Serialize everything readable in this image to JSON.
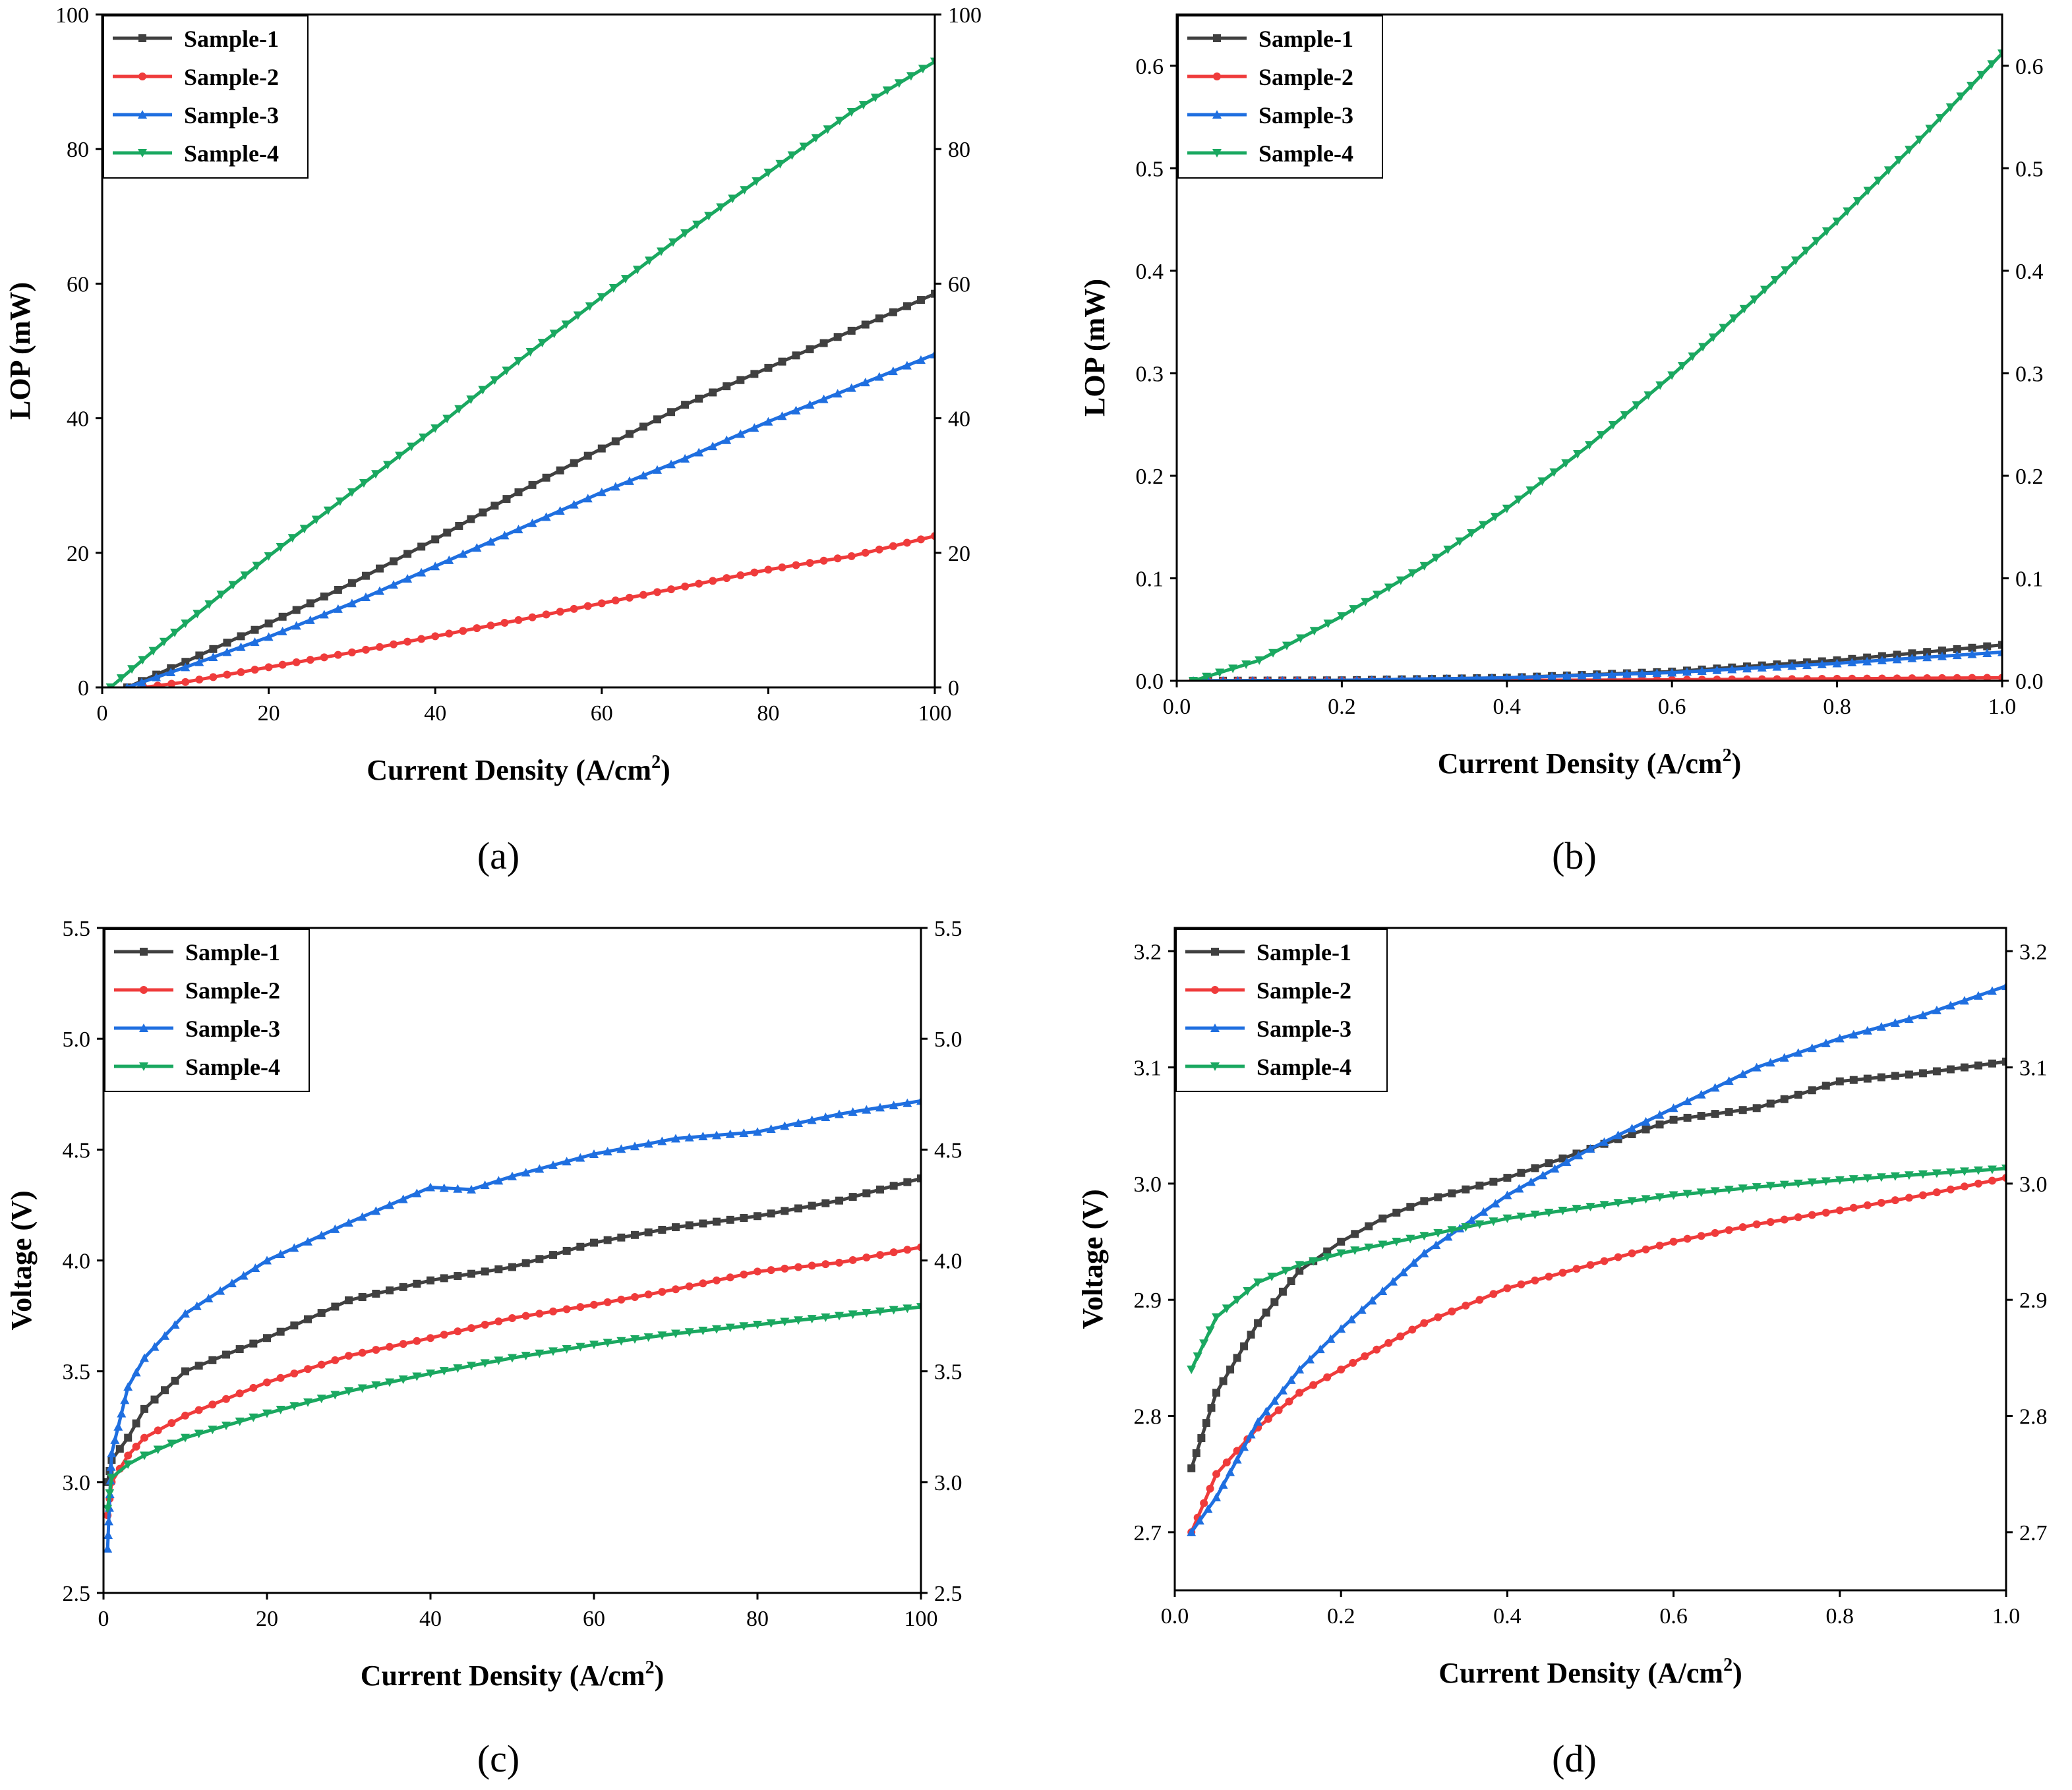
{
  "colors": {
    "Sample-1": "#404040",
    "Sample-2": "#ef3b3b",
    "Sample-3": "#1f6fe0",
    "Sample-4": "#1aa860"
  },
  "chart_data": [
    {
      "panel": "(a)",
      "type": "line",
      "xlabel": "Current Density (A/cm",
      "xlabel_sup": "2",
      "xlabel_end": ")",
      "ylabel": "LOP (mW)",
      "xlim": [
        0,
        100
      ],
      "ylim": [
        0,
        100
      ],
      "xticks": [
        "0",
        "20",
        "40",
        "60",
        "80",
        "100"
      ],
      "yticks": [
        "0",
        "20",
        "40",
        "60",
        "80",
        "100"
      ],
      "right_axis": true,
      "legend": "top-left",
      "series": [
        {
          "name": "Sample-1",
          "marker": "square",
          "x": [
            3,
            10,
            20,
            30,
            40,
            50,
            60,
            70,
            80,
            90,
            100
          ],
          "y": [
            0,
            3.8,
            9.5,
            15.5,
            22,
            29,
            35.5,
            42,
            47.5,
            53,
            58.5
          ]
        },
        {
          "name": "Sample-2",
          "marker": "circle",
          "x": [
            5,
            10,
            20,
            30,
            40,
            50,
            60,
            70,
            80,
            90,
            100
          ],
          "y": [
            0,
            0.8,
            3,
            5.2,
            7.6,
            10,
            12.5,
            15,
            17.5,
            19.5,
            22.5
          ]
        },
        {
          "name": "Sample-3",
          "marker": "triangle-up",
          "x": [
            3,
            10,
            20,
            30,
            40,
            50,
            60,
            70,
            80,
            90,
            100
          ],
          "y": [
            0,
            3,
            7.5,
            12.5,
            18,
            23.5,
            29,
            34,
            39.5,
            44.5,
            49.5
          ]
        },
        {
          "name": "Sample-4",
          "marker": "triangle-down",
          "x": [
            1,
            10,
            20,
            30,
            40,
            50,
            60,
            70,
            80,
            90,
            100
          ],
          "y": [
            0,
            9.5,
            19.5,
            29,
            38.5,
            48.5,
            58,
            67.5,
            76.5,
            85.5,
            93
          ]
        }
      ]
    },
    {
      "panel": "(b)",
      "type": "line",
      "xlabel": "Current Density (A/cm",
      "xlabel_sup": "2",
      "xlabel_end": ")",
      "ylabel": "LOP (mW)",
      "xlim": [
        0,
        1
      ],
      "ylim": [
        0,
        0.65
      ],
      "xticks": [
        "0.0",
        "0.2",
        "0.4",
        "0.6",
        "0.8",
        "1.0"
      ],
      "yticks": [
        "0.0",
        "0.1",
        "0.2",
        "0.3",
        "0.4",
        "0.5",
        "0.6"
      ],
      "right_axis": true,
      "legend": "top-left",
      "series": [
        {
          "name": "Sample-1",
          "marker": "square",
          "x": [
            0.02,
            0.2,
            0.4,
            0.6,
            0.8,
            1.0
          ],
          "y": [
            0,
            0.0005,
            0.003,
            0.009,
            0.02,
            0.035
          ]
        },
        {
          "name": "Sample-2",
          "marker": "circle",
          "x": [
            0.02,
            0.2,
            0.4,
            0.6,
            0.8,
            1.0
          ],
          "y": [
            0,
            0,
            0.0005,
            0.001,
            0.002,
            0.003
          ]
        },
        {
          "name": "Sample-3",
          "marker": "triangle-up",
          "x": [
            0.02,
            0.2,
            0.4,
            0.6,
            0.8,
            1.0
          ],
          "y": [
            0,
            0.0005,
            0.003,
            0.008,
            0.017,
            0.028
          ]
        },
        {
          "name": "Sample-4",
          "marker": "triangle-down",
          "x": [
            0.02,
            0.1,
            0.2,
            0.3,
            0.4,
            0.5,
            0.6,
            0.7,
            0.8,
            0.9,
            1.0
          ],
          "y": [
            0,
            0.02,
            0.063,
            0.112,
            0.168,
            0.23,
            0.298,
            0.372,
            0.448,
            0.528,
            0.612
          ]
        }
      ]
    },
    {
      "panel": "(c)",
      "type": "line",
      "xlabel": "Current Density (A/cm",
      "xlabel_sup": "2",
      "xlabel_end": ")",
      "ylabel": "Voltage (V)",
      "xlim": [
        0,
        100
      ],
      "ylim": [
        2.5,
        5.5
      ],
      "xticks": [
        "0",
        "20",
        "40",
        "60",
        "80",
        "100"
      ],
      "yticks": [
        "2.5",
        "3.0",
        "3.5",
        "4.0",
        "4.5",
        "5.0",
        "5.5"
      ],
      "right_axis": true,
      "legend": "top-left",
      "series": [
        {
          "name": "Sample-1",
          "marker": "square",
          "x": [
            0.5,
            1,
            3,
            5,
            10,
            20,
            30,
            40,
            50,
            60,
            70,
            80,
            90,
            100
          ],
          "y": [
            3.0,
            3.1,
            3.2,
            3.33,
            3.5,
            3.65,
            3.82,
            3.91,
            3.97,
            4.08,
            4.15,
            4.2,
            4.27,
            4.37
          ]
        },
        {
          "name": "Sample-2",
          "marker": "circle",
          "x": [
            0.5,
            1,
            3,
            5,
            10,
            20,
            30,
            40,
            50,
            60,
            70,
            80,
            90,
            100
          ],
          "y": [
            2.85,
            3.0,
            3.12,
            3.2,
            3.3,
            3.45,
            3.57,
            3.65,
            3.74,
            3.8,
            3.87,
            3.95,
            3.99,
            4.06
          ]
        },
        {
          "name": "Sample-3",
          "marker": "triangle-up",
          "x": [
            0.5,
            1,
            3,
            5,
            10,
            20,
            30,
            40,
            45,
            50,
            60,
            70,
            80,
            90,
            100
          ],
          "y": [
            2.7,
            3.13,
            3.43,
            3.56,
            3.76,
            4.0,
            4.17,
            4.33,
            4.32,
            4.38,
            4.48,
            4.55,
            4.58,
            4.66,
            4.72
          ]
        },
        {
          "name": "Sample-4",
          "marker": "triangle-down",
          "x": [
            0.5,
            1,
            3,
            5,
            10,
            20,
            30,
            40,
            50,
            60,
            70,
            80,
            90,
            100
          ],
          "y": [
            2.88,
            3.02,
            3.08,
            3.12,
            3.2,
            3.31,
            3.41,
            3.49,
            3.56,
            3.62,
            3.67,
            3.71,
            3.75,
            3.79
          ]
        }
      ]
    },
    {
      "panel": "(d)",
      "type": "line",
      "xlabel": "Current Density (A/cm",
      "xlabel_sup": "2",
      "xlabel_end": ")",
      "ylabel": "Voltage (V)",
      "xlim": [
        0,
        1
      ],
      "ylim": [
        2.65,
        3.22
      ],
      "xticks": [
        "0.0",
        "0.2",
        "0.4",
        "0.6",
        "0.8",
        "1.0"
      ],
      "yticks": [
        "2.7",
        "2.8",
        "2.9",
        "3.0",
        "3.1",
        "3.2"
      ],
      "right_axis": true,
      "legend": "top-left",
      "series": [
        {
          "name": "Sample-1",
          "marker": "square",
          "x": [
            0.02,
            0.05,
            0.1,
            0.15,
            0.2,
            0.25,
            0.3,
            0.4,
            0.5,
            0.6,
            0.7,
            0.8,
            0.9,
            1.0
          ],
          "y": [
            2.755,
            2.82,
            2.88,
            2.925,
            2.95,
            2.97,
            2.985,
            3.005,
            3.03,
            3.055,
            3.065,
            3.088,
            3.095,
            3.105
          ]
        },
        {
          "name": "Sample-2",
          "marker": "circle",
          "x": [
            0.02,
            0.05,
            0.1,
            0.15,
            0.2,
            0.3,
            0.4,
            0.5,
            0.6,
            0.7,
            0.8,
            0.9,
            1.0
          ],
          "y": [
            2.7,
            2.75,
            2.79,
            2.82,
            2.84,
            2.88,
            2.91,
            2.93,
            2.95,
            2.965,
            2.977,
            2.99,
            3.005
          ]
        },
        {
          "name": "Sample-3",
          "marker": "triangle-up",
          "x": [
            0.02,
            0.05,
            0.1,
            0.15,
            0.2,
            0.3,
            0.4,
            0.5,
            0.6,
            0.7,
            0.8,
            0.9,
            1.0
          ],
          "y": [
            2.7,
            2.73,
            2.795,
            2.84,
            2.875,
            2.94,
            2.99,
            3.03,
            3.065,
            3.1,
            3.125,
            3.145,
            3.17
          ]
        },
        {
          "name": "Sample-4",
          "marker": "triangle-down",
          "x": [
            0.02,
            0.05,
            0.1,
            0.15,
            0.2,
            0.3,
            0.4,
            0.5,
            0.6,
            0.7,
            0.8,
            0.9,
            1.0
          ],
          "y": [
            2.84,
            2.885,
            2.915,
            2.93,
            2.94,
            2.955,
            2.97,
            2.98,
            2.99,
            2.997,
            3.003,
            3.008,
            3.013
          ]
        }
      ]
    }
  ]
}
